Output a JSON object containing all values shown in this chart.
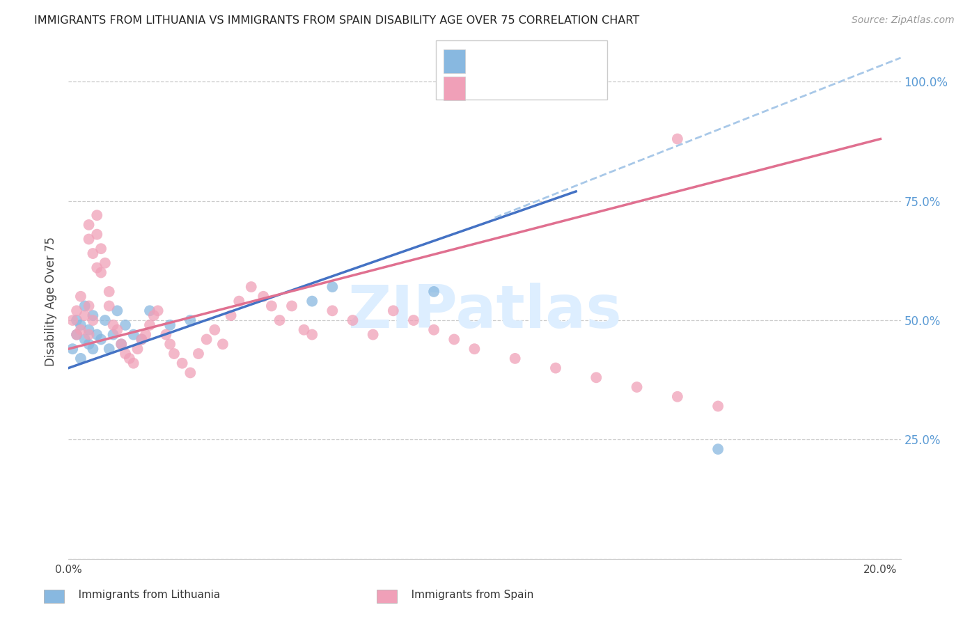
{
  "title": "IMMIGRANTS FROM LITHUANIA VS IMMIGRANTS FROM SPAIN DISABILITY AGE OVER 75 CORRELATION CHART",
  "source": "Source: ZipAtlas.com",
  "ylabel": "Disability Age Over 75",
  "color_lithuania": "#88b8e0",
  "color_spain": "#f0a0b8",
  "color_line_lithuania": "#4472c4",
  "color_line_spain": "#e07090",
  "color_dashed": "#a8c8e8",
  "watermark": "ZIPatlas",
  "watermark_color": "#ddeeff",
  "grid_color": "#cccccc",
  "background_color": "#ffffff",
  "xmin": 0.0,
  "xmax": 0.205,
  "ymin": 0.0,
  "ymax": 1.08,
  "lith_x": [
    0.001,
    0.002,
    0.002,
    0.003,
    0.003,
    0.004,
    0.004,
    0.005,
    0.005,
    0.006,
    0.006,
    0.007,
    0.008,
    0.009,
    0.01,
    0.011,
    0.012,
    0.013,
    0.014,
    0.016,
    0.018,
    0.02,
    0.025,
    0.03,
    0.06,
    0.065,
    0.09,
    0.12,
    0.16
  ],
  "lith_y": [
    0.44,
    0.47,
    0.5,
    0.42,
    0.49,
    0.46,
    0.53,
    0.45,
    0.48,
    0.44,
    0.51,
    0.47,
    0.46,
    0.5,
    0.44,
    0.47,
    0.52,
    0.45,
    0.49,
    0.47,
    0.46,
    0.52,
    0.49,
    0.5,
    0.54,
    0.57,
    0.56,
    1.0,
    0.23
  ],
  "spain_x": [
    0.001,
    0.002,
    0.002,
    0.003,
    0.003,
    0.004,
    0.005,
    0.005,
    0.006,
    0.007,
    0.007,
    0.008,
    0.008,
    0.009,
    0.01,
    0.01,
    0.011,
    0.012,
    0.013,
    0.014,
    0.015,
    0.016,
    0.017,
    0.018,
    0.019,
    0.02,
    0.021,
    0.022,
    0.024,
    0.025,
    0.026,
    0.028,
    0.03,
    0.032,
    0.034,
    0.036,
    0.038,
    0.04,
    0.042,
    0.045,
    0.048,
    0.05,
    0.052,
    0.055,
    0.058,
    0.06,
    0.065,
    0.07,
    0.075,
    0.08,
    0.085,
    0.09,
    0.095,
    0.1,
    0.11,
    0.12,
    0.13,
    0.14,
    0.15,
    0.16,
    0.005,
    0.005,
    0.006,
    0.007,
    0.15
  ],
  "spain_y": [
    0.5,
    0.47,
    0.52,
    0.55,
    0.48,
    0.51,
    0.53,
    0.47,
    0.5,
    0.72,
    0.68,
    0.65,
    0.6,
    0.62,
    0.56,
    0.53,
    0.49,
    0.48,
    0.45,
    0.43,
    0.42,
    0.41,
    0.44,
    0.46,
    0.47,
    0.49,
    0.51,
    0.52,
    0.47,
    0.45,
    0.43,
    0.41,
    0.39,
    0.43,
    0.46,
    0.48,
    0.45,
    0.51,
    0.54,
    0.57,
    0.55,
    0.53,
    0.5,
    0.53,
    0.48,
    0.47,
    0.52,
    0.5,
    0.47,
    0.52,
    0.5,
    0.48,
    0.46,
    0.44,
    0.42,
    0.4,
    0.38,
    0.36,
    0.34,
    0.32,
    0.7,
    0.67,
    0.64,
    0.61,
    0.88
  ],
  "lith_line_x": [
    0.0,
    0.125
  ],
  "lith_line_y": [
    0.4,
    0.77
  ],
  "spain_line_x": [
    0.0,
    0.2
  ],
  "spain_line_y": [
    0.44,
    0.88
  ],
  "dash_line_x": [
    0.105,
    0.205
  ],
  "dash_line_y": [
    0.715,
    1.05
  ]
}
